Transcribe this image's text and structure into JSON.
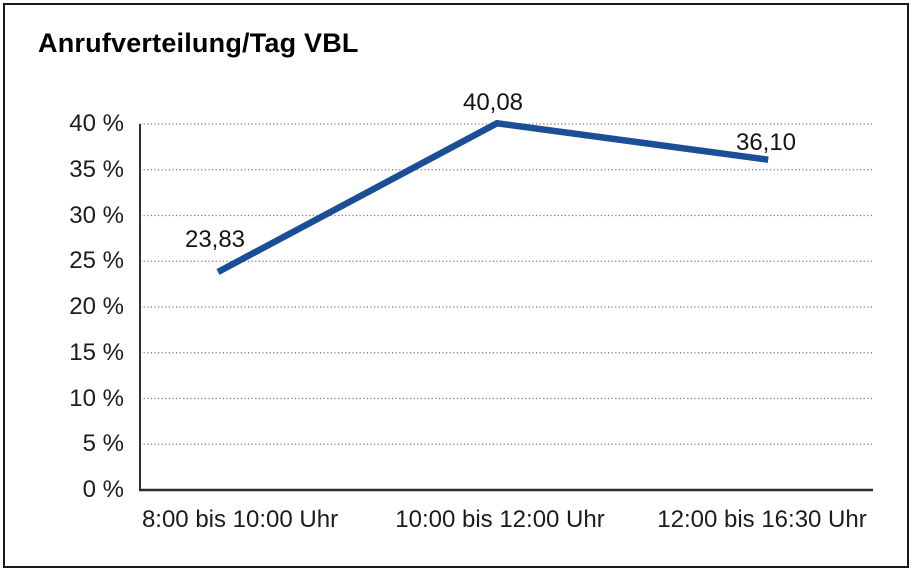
{
  "chart_data": {
    "type": "line",
    "title": "Anrufverteilung/Tag VBL",
    "categories": [
      "8:00 bis 10:00 Uhr",
      "10:00 bis 12:00 Uhr",
      "12:00 bis 16:30 Uhr"
    ],
    "values": [
      23.83,
      40.08,
      36.1
    ],
    "data_labels": [
      "23,83",
      "40,08",
      "36,10"
    ],
    "ylim": [
      0,
      40
    ],
    "ytick_step": 5,
    "ytick_labels": [
      "0 %",
      "5 %",
      "10 %",
      "15 %",
      "20 %",
      "25 %",
      "30 %",
      "35 %",
      "40 %"
    ],
    "xlabel": "",
    "ylabel": "",
    "grid": "horizontal-dotted",
    "legend": "none",
    "line_color": "#1A4E97",
    "gridline_color": "#7a7a7a",
    "axis_color": "#2e2e2e",
    "frame_color": "#1a1a1a"
  }
}
